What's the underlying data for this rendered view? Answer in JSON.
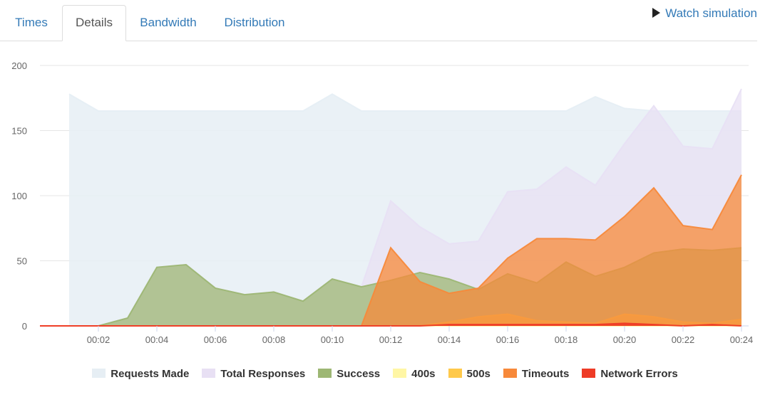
{
  "tabs": [
    {
      "label": "Times"
    },
    {
      "label": "Details",
      "active": true
    },
    {
      "label": "Bandwidth"
    },
    {
      "label": "Distribution"
    }
  ],
  "watch_label": "Watch simulation",
  "chart_data": {
    "type": "area",
    "ylim": [
      0,
      200
    ],
    "yticks": [
      0,
      50,
      100,
      150,
      200
    ],
    "xlim": [
      0,
      24
    ],
    "xticks": [
      2,
      4,
      6,
      8,
      10,
      12,
      14,
      16,
      18,
      20,
      22,
      24
    ],
    "xtick_labels": [
      "00:02",
      "00:04",
      "00:06",
      "00:08",
      "00:10",
      "00:12",
      "00:14",
      "00:16",
      "00:18",
      "00:20",
      "00:22",
      "00:24"
    ],
    "x": [
      0,
      1,
      2,
      3,
      4,
      5,
      6,
      7,
      8,
      9,
      10,
      11,
      12,
      13,
      14,
      15,
      16,
      17,
      18,
      19,
      20,
      21,
      22,
      23,
      24
    ],
    "series": [
      {
        "name": "Requests Made",
        "color": "#e6eef4",
        "opacity": 0.85,
        "values": [
          null,
          178,
          165,
          165,
          165,
          165,
          165,
          165,
          165,
          165,
          178,
          165,
          165,
          165,
          165,
          165,
          165,
          165,
          165,
          176,
          167,
          165,
          165,
          165,
          165
        ]
      },
      {
        "name": "Total Responses",
        "color": "#e8e0f4",
        "opacity": 0.7,
        "values": [
          null,
          0,
          0,
          6,
          45,
          47,
          29,
          24,
          26,
          19,
          36,
          30,
          96,
          76,
          63,
          65,
          103,
          105,
          122,
          108,
          140,
          169,
          138,
          136,
          182
        ]
      },
      {
        "name": "Success",
        "color": "#9db774",
        "opacity": 0.75,
        "values": [
          0,
          0,
          0,
          6,
          45,
          47,
          29,
          24,
          26,
          19,
          36,
          30,
          35,
          41,
          36,
          28,
          40,
          33,
          49,
          38,
          45,
          56,
          59,
          58,
          60
        ]
      },
      {
        "name": "400s",
        "color": "#fff6a5",
        "opacity": 0.8,
        "values": [
          0,
          0,
          0,
          0,
          0,
          0,
          0,
          0,
          0,
          0,
          0,
          0,
          0,
          0,
          0,
          0,
          0,
          0,
          0,
          0,
          0,
          0,
          0,
          0,
          0
        ]
      },
      {
        "name": "500s",
        "color": "#ffc94a",
        "opacity": 0.8,
        "values": [
          0,
          0,
          0,
          0,
          0,
          0,
          0,
          0,
          0,
          0,
          0,
          0,
          0,
          0,
          3,
          7,
          9,
          4,
          3,
          2,
          9,
          7,
          3,
          2,
          5
        ]
      },
      {
        "name": "Timeouts",
        "color": "#f7893a",
        "opacity": 0.75,
        "values": [
          0,
          0,
          0,
          0,
          0,
          0,
          0,
          0,
          0,
          0,
          0,
          0,
          60,
          34,
          25,
          29,
          52,
          67,
          67,
          66,
          84,
          106,
          77,
          74,
          116
        ]
      },
      {
        "name": "Network Errors",
        "color": "#ee3b26",
        "opacity": 0.9,
        "values": [
          0,
          0,
          0,
          0,
          0,
          0,
          0,
          0,
          0,
          0,
          0,
          0,
          0,
          0,
          1,
          1,
          1,
          1,
          1,
          1,
          2,
          1,
          0,
          1,
          0
        ]
      }
    ]
  }
}
